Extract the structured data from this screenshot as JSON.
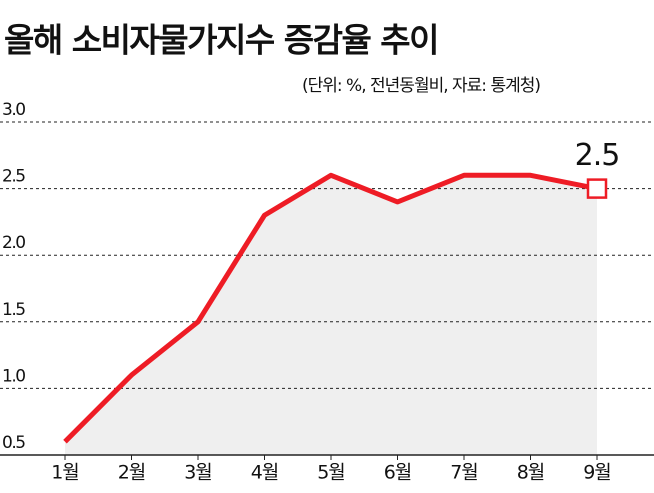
{
  "chart_data": {
    "type": "line",
    "title": "올해 소비자물가지수 증감율 추이",
    "subtitle": "(단위: %, 전년동월비, 자료: 통계청)",
    "categories": [
      "1월",
      "2월",
      "3월",
      "4월",
      "5월",
      "6월",
      "7월",
      "8월",
      "9월"
    ],
    "values": [
      0.6,
      1.1,
      1.5,
      2.3,
      2.6,
      2.4,
      2.6,
      2.6,
      2.5
    ],
    "color": "#ee1c25",
    "ylim": [
      0.5,
      3.0
    ],
    "yticks": [
      0.5,
      {
        "value": 1.0,
        "label": "1.0"
      },
      1.5,
      {
        "value": 2.0,
        "label": "2.0"
      },
      2.5,
      {
        "value": 3.0,
        "label": "3.0"
      }
    ],
    "grid": true
  }
}
